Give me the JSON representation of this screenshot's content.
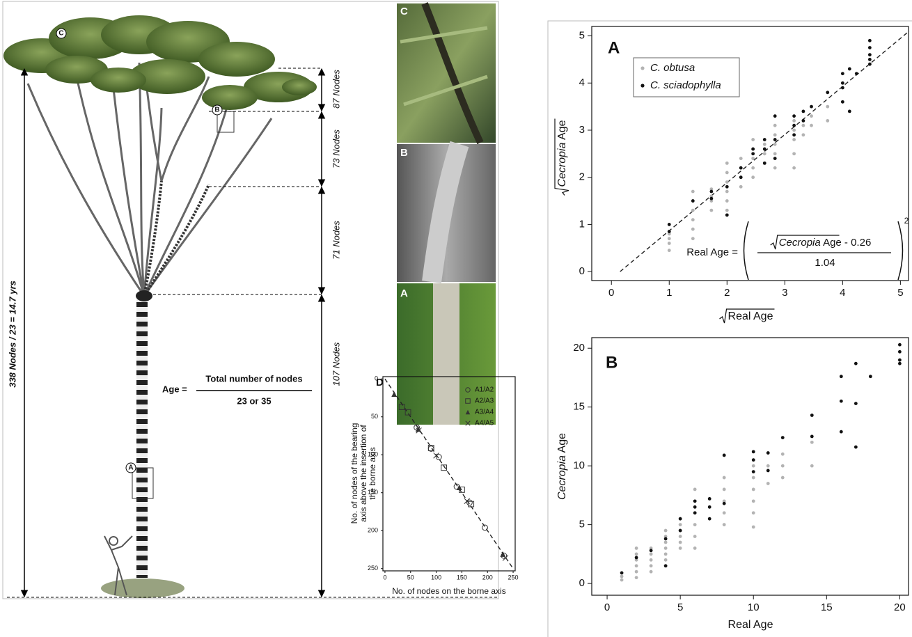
{
  "figure": {
    "node_counts": [
      "87 Nodes",
      "73 Nodes",
      "71 Nodes",
      "107 Nodes"
    ],
    "total": "338 Nodes / 23 = 14.7 yrs",
    "age_formula": {
      "lhs": "Age =",
      "numerator": "Total number of nodes",
      "denominator": "23 or 35"
    },
    "tree_markers": [
      "C",
      "B",
      "A"
    ],
    "photo_labels": [
      "C",
      "B",
      "A"
    ]
  },
  "chart_data": [
    {
      "type": "scatter",
      "panel": "D",
      "x_label": "No. of nodes on the borne axis",
      "y_label": [
        "No. of nodes of the bearing",
        "axis above the insertion of",
        "the borne axis"
      ],
      "xlim": [
        -4,
        254
      ],
      "ylim": [
        -3,
        253
      ],
      "y_inverted": true,
      "xticks": [
        0,
        50,
        100,
        150,
        200,
        250
      ],
      "yticks": [
        0,
        50,
        100,
        150,
        200,
        250
      ],
      "fit_line": {
        "x": [
          0,
          250
        ],
        "y": [
          0,
          250
        ]
      },
      "series": [
        {
          "name": "A1/A2",
          "marker": "circle",
          "color": "#333333",
          "x": [
            62,
            90,
            105,
            140,
            165,
            195,
            232
          ],
          "values": [
            64,
            92,
            103,
            142,
            163,
            196,
            233
          ]
        },
        {
          "name": "A2/A3",
          "marker": "square",
          "color": "#333333",
          "x": [
            33,
            45,
            90,
            115,
            150,
            168
          ],
          "values": [
            37,
            44,
            91,
            117,
            146,
            165
          ]
        },
        {
          "name": "A3/A4",
          "marker": "triangle",
          "color": "#333333",
          "x": [
            18,
            65,
            145,
            230
          ],
          "values": [
            20,
            66,
            143,
            231
          ]
        },
        {
          "name": "A4/A5",
          "marker": "x",
          "color": "#333333",
          "x": [
            66,
            100,
            160,
            235
          ],
          "values": [
            68,
            101,
            161,
            236
          ]
        }
      ]
    },
    {
      "type": "scatter",
      "panel": "A",
      "x_label": "Real Age",
      "y_label": [
        "Cecropia",
        " Age"
      ],
      "xlim": [
        -0.34,
        5.14
      ],
      "ylim": [
        -0.19,
        5.2
      ],
      "xticks": [
        0,
        1,
        2,
        3,
        4,
        5
      ],
      "yticks": [
        0,
        1,
        2,
        3,
        4,
        5
      ],
      "legend": "upper left",
      "fit_line": {
        "x": [
          0.15,
          5.15
        ],
        "y": [
          0,
          5.1
        ]
      },
      "formula": {
        "lhs": "Real Age =",
        "numerator": [
          "Cecropia",
          " Age - 0.26"
        ],
        "denominator": "1.04",
        "exponent": "2"
      },
      "series": [
        {
          "name": "C. obtusa",
          "color": "#b3b3b3",
          "x": [
            1,
            1,
            1,
            1,
            1.41,
            1.41,
            1.41,
            1.41,
            1.41,
            1.41,
            1.73,
            1.73,
            1.73,
            1.73,
            2,
            2,
            2,
            2,
            2,
            2,
            2.24,
            2.24,
            2.24,
            2.24,
            2.45,
            2.45,
            2.45,
            2.45,
            2.45,
            2.65,
            2.65,
            2.83,
            2.83,
            2.83,
            2.83,
            2.83,
            3.16,
            3.16,
            3.16,
            3.16,
            3.16,
            3.32,
            3.32,
            3.46,
            3.46,
            3.74,
            3.74,
            4.47
          ],
          "values": [
            0.45,
            0.6,
            0.7,
            0.8,
            0.7,
            0.9,
            1.1,
            1.3,
            1.5,
            1.7,
            1.3,
            1.5,
            1.6,
            1.75,
            1.3,
            1.5,
            1.7,
            1.9,
            2.1,
            2.3,
            1.8,
            2.0,
            2.2,
            2.4,
            2.0,
            2.2,
            2.4,
            2.6,
            2.8,
            2.5,
            2.7,
            2.2,
            2.5,
            2.7,
            2.9,
            3.1,
            2.2,
            2.5,
            2.8,
            3.0,
            3.2,
            2.9,
            3.1,
            3.1,
            3.3,
            3.2,
            3.5,
            4.4
          ]
        },
        {
          "name": "C. sciadophylla",
          "color": "#111111",
          "x": [
            1,
            1,
            1.41,
            1.73,
            1.73,
            2,
            2,
            2.24,
            2.24,
            2.45,
            2.45,
            2.65,
            2.65,
            2.65,
            2.83,
            2.83,
            2.83,
            3.16,
            3.16,
            3.16,
            3.32,
            3.32,
            3.46,
            3.74,
            4,
            4,
            4,
            4,
            4.12,
            4.12,
            4.24,
            4.47,
            4.47,
            4.47,
            4.47,
            4.47
          ],
          "values": [
            0.85,
            1.0,
            1.5,
            1.55,
            1.7,
            1.2,
            1.8,
            2.0,
            2.2,
            2.5,
            2.6,
            2.3,
            2.6,
            2.8,
            2.4,
            2.8,
            3.3,
            2.9,
            3.1,
            3.3,
            3.2,
            3.4,
            3.5,
            3.8,
            3.6,
            3.9,
            4.0,
            4.2,
            3.4,
            4.3,
            4.2,
            4.4,
            4.5,
            4.6,
            4.75,
            4.9
          ]
        }
      ]
    },
    {
      "type": "scatter",
      "panel": "B",
      "x_label": "Real Age",
      "y_label": [
        "Cecropia",
        " Age"
      ],
      "xlim": [
        -1.05,
        20.6
      ],
      "ylim": [
        -1.0,
        20.9
      ],
      "xticks": [
        0,
        5,
        10,
        15,
        20
      ],
      "yticks": [
        0,
        5,
        10,
        15,
        20
      ],
      "series": [
        {
          "name": "C. obtusa",
          "color": "#b3b3b3",
          "x": [
            1,
            1,
            2,
            2,
            2,
            2,
            2,
            2,
            3,
            3,
            3,
            3,
            3,
            4,
            4,
            4,
            4,
            4,
            4,
            4,
            5,
            5,
            5,
            5,
            5,
            5,
            6,
            6,
            6,
            6,
            6,
            6,
            8,
            8,
            8,
            8,
            8,
            10,
            10,
            10,
            10,
            10,
            10,
            11,
            11,
            12,
            12,
            12,
            14,
            14
          ],
          "values": [
            0.3,
            0.6,
            0.5,
            1,
            1.5,
            2,
            2.5,
            3,
            1,
            1.5,
            2,
            2.5,
            3,
            1.5,
            2,
            2.5,
            3,
            3.5,
            4,
            4.5,
            3,
            3.5,
            4,
            4.5,
            5,
            5.5,
            3,
            4,
            5,
            6,
            7,
            8,
            5,
            6,
            7,
            8,
            9,
            4.8,
            6,
            7,
            8,
            9,
            10,
            8.5,
            10,
            9,
            10,
            11,
            10,
            12
          ]
        },
        {
          "name": "C. sciadophylla",
          "color": "#111111",
          "x": [
            1,
            2,
            3,
            4,
            4,
            5,
            5,
            6,
            6,
            6,
            7,
            7,
            7,
            8,
            8,
            10,
            10,
            10,
            11,
            11,
            12,
            14,
            14,
            16,
            16,
            16,
            17,
            17,
            17,
            18,
            20,
            20,
            20,
            20
          ],
          "values": [
            0.9,
            2.2,
            2.8,
            1.5,
            3.8,
            4.5,
            5.5,
            6,
            6.5,
            7,
            5.5,
            6.5,
            7.2,
            6.8,
            10.9,
            9.5,
            10.5,
            11.2,
            9.6,
            11.1,
            12.4,
            12.5,
            14.3,
            12.9,
            15.5,
            17.6,
            11.6,
            15.3,
            18.7,
            17.6,
            18.7,
            19,
            19.7,
            20.3
          ]
        }
      ]
    }
  ]
}
